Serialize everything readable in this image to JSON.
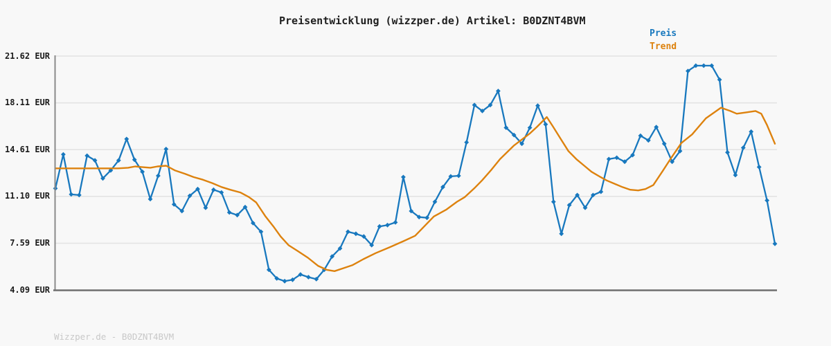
{
  "page": {
    "background": "#f8f8f8",
    "title_color": "#1f1f1f",
    "label_color": "#1a1a1a",
    "grid_color": "#e3e3e3",
    "y_axis_color": "#8a8a8a",
    "x_axis_color": "#6f6f6f",
    "watermark_color": "#c8c8c8"
  },
  "title": {
    "text": "Preisentwicklung (wizzper.de) Artikel: B0DZNT4BVM"
  },
  "legend": {
    "items": [
      {
        "label": "Preis",
        "color": "#1878be"
      },
      {
        "label": "Trend",
        "color": "#dd820e"
      }
    ]
  },
  "footer": {
    "text": "Wizzper.de - B0DZNT4BVM"
  },
  "chart_data": {
    "type": "line",
    "currency": "EUR",
    "title": "Preisentwicklung (wizzper.de) Artikel: B0DZNT4BVM",
    "xlabel": "",
    "ylabel": "",
    "x_axis_tick_labels": "none",
    "grid": true,
    "legend_position": "top-right",
    "ylim": [
      4.09,
      21.62
    ],
    "yticks": [
      {
        "value": 21.62,
        "label": "21.62 EUR"
      },
      {
        "value": 18.11,
        "label": "18.11 EUR"
      },
      {
        "value": 14.61,
        "label": "14.61 EUR"
      },
      {
        "value": 11.1,
        "label": "11.10 EUR"
      },
      {
        "value": 7.59,
        "label": "7.59 EUR"
      },
      {
        "value": 4.09,
        "label": "4.09 EUR"
      }
    ],
    "series": [
      {
        "name": "Preis",
        "color": "#1878be",
        "marker": "diamond",
        "line_width": 2.3,
        "values": [
          11.7,
          14.25,
          11.25,
          11.2,
          14.15,
          13.8,
          12.45,
          13.05,
          13.8,
          15.4,
          13.85,
          12.95,
          10.9,
          12.65,
          14.65,
          10.5,
          10.0,
          11.15,
          11.65,
          10.25,
          11.6,
          11.4,
          9.9,
          9.7,
          10.3,
          9.1,
          8.45,
          5.6,
          4.95,
          4.75,
          4.85,
          5.25,
          5.05,
          4.9,
          5.6,
          6.6,
          7.2,
          8.45,
          8.3,
          8.1,
          7.45,
          8.85,
          8.95,
          9.15,
          12.55,
          10.0,
          9.55,
          9.5,
          10.7,
          11.8,
          12.6,
          12.65,
          15.15,
          17.95,
          17.5,
          17.95,
          19.0,
          16.25,
          15.7,
          15.05,
          16.25,
          17.9,
          16.5,
          10.7,
          8.3,
          10.45,
          11.2,
          10.25,
          11.2,
          11.45,
          13.9,
          14.0,
          13.7,
          14.2,
          15.65,
          15.3,
          16.3,
          15.05,
          13.7,
          14.5,
          20.5,
          20.9,
          20.9,
          20.9,
          19.85,
          14.4,
          12.7,
          14.75,
          15.95,
          13.3,
          10.8,
          7.55
        ]
      },
      {
        "name": "Trend",
        "color": "#dd820e",
        "marker": "none",
        "line_width": 2.4,
        "x_frac_value_pairs": [
          [
            0.0,
            13.2
          ],
          [
            0.087,
            13.2
          ],
          [
            0.101,
            13.25
          ],
          [
            0.111,
            13.35
          ],
          [
            0.12,
            13.3
          ],
          [
            0.132,
            13.25
          ],
          [
            0.142,
            13.35
          ],
          [
            0.154,
            13.4
          ],
          [
            0.166,
            13.05
          ],
          [
            0.18,
            12.8
          ],
          [
            0.192,
            12.55
          ],
          [
            0.205,
            12.35
          ],
          [
            0.218,
            12.1
          ],
          [
            0.231,
            11.8
          ],
          [
            0.243,
            11.6
          ],
          [
            0.257,
            11.4
          ],
          [
            0.269,
            11.05
          ],
          [
            0.279,
            10.65
          ],
          [
            0.292,
            9.6
          ],
          [
            0.303,
            8.85
          ],
          [
            0.313,
            8.1
          ],
          [
            0.324,
            7.45
          ],
          [
            0.337,
            7.0
          ],
          [
            0.351,
            6.5
          ],
          [
            0.365,
            5.9
          ],
          [
            0.377,
            5.6
          ],
          [
            0.388,
            5.5
          ],
          [
            0.399,
            5.7
          ],
          [
            0.413,
            5.95
          ],
          [
            0.428,
            6.4
          ],
          [
            0.445,
            6.85
          ],
          [
            0.465,
            7.3
          ],
          [
            0.484,
            7.75
          ],
          [
            0.5,
            8.15
          ],
          [
            0.526,
            9.6
          ],
          [
            0.543,
            10.1
          ],
          [
            0.558,
            10.7
          ],
          [
            0.569,
            11.05
          ],
          [
            0.582,
            11.7
          ],
          [
            0.593,
            12.3
          ],
          [
            0.606,
            13.1
          ],
          [
            0.618,
            13.9
          ],
          [
            0.637,
            14.9
          ],
          [
            0.659,
            15.8
          ],
          [
            0.669,
            16.3
          ],
          [
            0.683,
            17.05
          ],
          [
            0.692,
            16.3
          ],
          [
            0.703,
            15.35
          ],
          [
            0.713,
            14.5
          ],
          [
            0.724,
            13.9
          ],
          [
            0.735,
            13.4
          ],
          [
            0.745,
            12.95
          ],
          [
            0.756,
            12.6
          ],
          [
            0.766,
            12.3
          ],
          [
            0.777,
            12.05
          ],
          [
            0.788,
            11.8
          ],
          [
            0.799,
            11.6
          ],
          [
            0.81,
            11.55
          ],
          [
            0.82,
            11.65
          ],
          [
            0.831,
            11.95
          ],
          [
            0.844,
            13.0
          ],
          [
            0.856,
            14.0
          ],
          [
            0.87,
            15.1
          ],
          [
            0.885,
            15.75
          ],
          [
            0.904,
            16.95
          ],
          [
            0.925,
            17.75
          ],
          [
            0.938,
            17.5
          ],
          [
            0.947,
            17.3
          ],
          [
            0.96,
            17.4
          ],
          [
            0.973,
            17.5
          ],
          [
            0.981,
            17.3
          ],
          [
            0.989,
            16.45
          ],
          [
            1.0,
            15.05
          ]
        ]
      }
    ]
  }
}
